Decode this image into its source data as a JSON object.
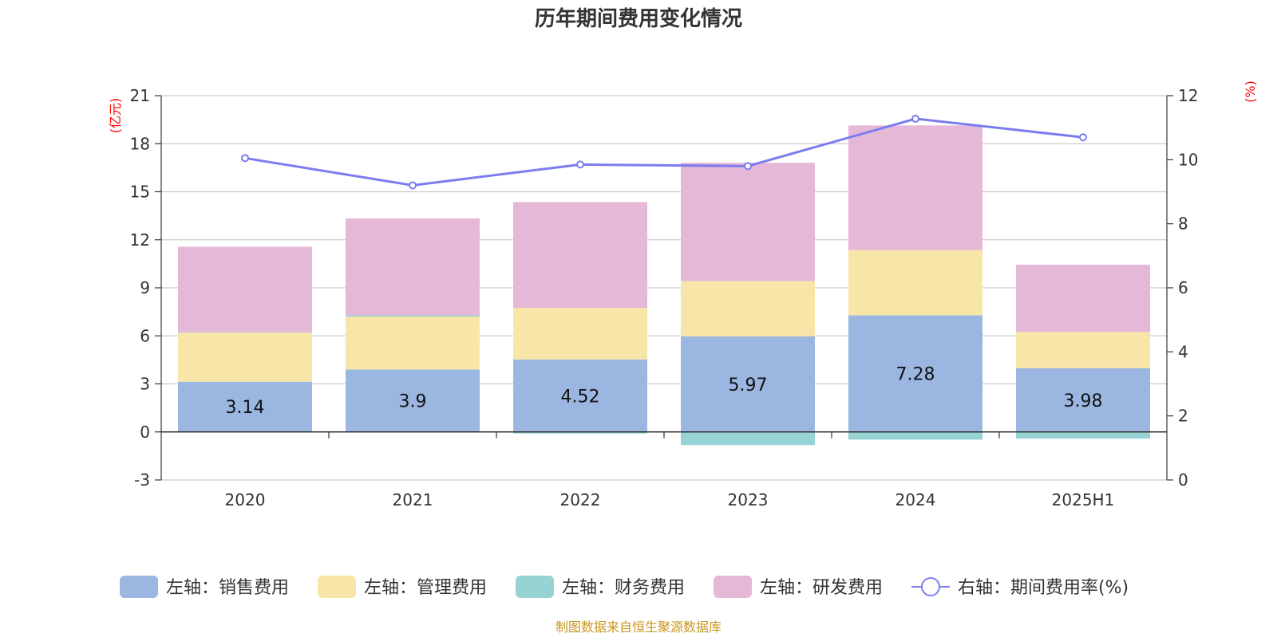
{
  "title": "历年期间费用变化情况",
  "source_note": "制图数据来自恒生聚源数据库",
  "colors": {
    "sales": "#9bb7e1",
    "admin": "#f7e6a8",
    "finance": "#97d3d3",
    "rnd": "#e6b8d8",
    "rate": "#7b7cf0",
    "unit": "#ff0000",
    "source": "#c8961e"
  },
  "chart_data": {
    "type": "bar",
    "stacked": true,
    "categories": [
      "2020",
      "2021",
      "2022",
      "2023",
      "2024",
      "2025H1"
    ],
    "left_axis": {
      "unit": "(亿元)",
      "ylim": [
        -3,
        21
      ],
      "ticks": [
        "-3",
        "0",
        "3",
        "6",
        "9",
        "12",
        "15",
        "18",
        "21"
      ]
    },
    "right_axis": {
      "unit": "(%)",
      "ylim": [
        0,
        12
      ],
      "ticks": [
        "0",
        "2",
        "4",
        "6",
        "8",
        "10",
        "12"
      ]
    },
    "series": [
      {
        "key": "sales",
        "name": "左轴：销售费用",
        "axis": "left",
        "type": "bar",
        "values": [
          3.14,
          3.9,
          4.52,
          5.97,
          7.28,
          3.98
        ],
        "labels": [
          "3.14",
          "3.9",
          "4.52",
          "5.97",
          "7.28",
          "3.98"
        ]
      },
      {
        "key": "admin",
        "name": "左轴：管理费用",
        "axis": "left",
        "type": "bar",
        "values": [
          3.06,
          3.3,
          3.23,
          3.44,
          4.08,
          2.26
        ]
      },
      {
        "key": "finance",
        "name": "左轴：财务费用",
        "axis": "left",
        "type": "bar",
        "values": [
          0.02,
          0.08,
          -0.1,
          -0.82,
          -0.48,
          -0.42
        ]
      },
      {
        "key": "rnd",
        "name": "左轴：研发费用",
        "axis": "left",
        "type": "bar",
        "values": [
          5.35,
          6.05,
          6.6,
          7.4,
          7.78,
          4.2
        ]
      },
      {
        "key": "rate",
        "name": "右轴：期间费用率(%)",
        "axis": "right",
        "type": "line",
        "values": [
          10.05,
          9.2,
          9.85,
          9.8,
          11.28,
          10.7
        ]
      }
    ],
    "grid": true,
    "legend_position": "bottom"
  }
}
